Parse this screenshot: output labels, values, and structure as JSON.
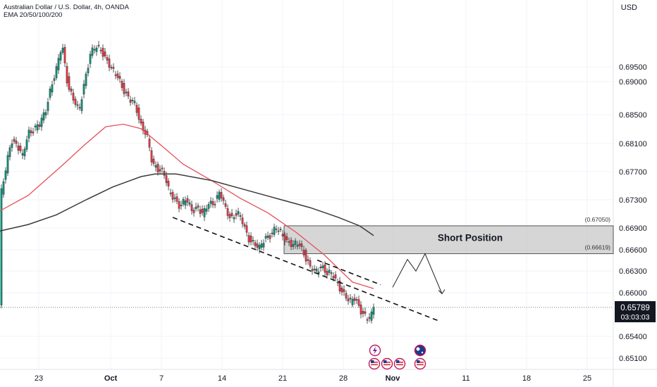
{
  "header": {
    "title": "Australian Dollar / U.S. Dollar, 4h, OANDA",
    "indicator": "EMA 20/50/100/200",
    "currency": "USD"
  },
  "chart_data": {
    "type": "candlestick",
    "y_ticks": [
      "0.69500",
      "0.69000",
      "0.68500",
      "0.68100",
      "0.67700",
      "0.67300",
      "0.66900",
      "0.66600",
      "0.66300",
      "0.66000",
      "0.65400",
      "0.65100"
    ],
    "x_ticks": [
      {
        "label": "23",
        "bold": false
      },
      {
        "label": "Oct",
        "bold": true
      },
      {
        "label": "7",
        "bold": false
      },
      {
        "label": "14",
        "bold": false
      },
      {
        "label": "21",
        "bold": false
      },
      {
        "label": "28",
        "bold": false
      },
      {
        "label": "Nov",
        "bold": true
      },
      {
        "label": "11",
        "bold": false
      },
      {
        "label": "18",
        "bold": false
      },
      {
        "label": "25",
        "bold": false
      }
    ],
    "last_price": "0.65789",
    "countdown": "03:03:03",
    "zone": {
      "label": "Short Position",
      "top_label": "(0.67050)",
      "bottom_label": "(0.66619)",
      "top": 0.6705,
      "bottom": 0.66619
    },
    "price_path": [
      [
        0,
        0.6745
      ],
      [
        8,
        0.679
      ],
      [
        16,
        0.684
      ],
      [
        24,
        0.683
      ],
      [
        32,
        0.681
      ],
      [
        40,
        0.685
      ],
      [
        48,
        0.6855
      ],
      [
        56,
        0.686
      ],
      [
        64,
        0.688
      ],
      [
        72,
        0.692
      ],
      [
        80,
        0.6945
      ],
      [
        88,
        0.6985
      ],
      [
        96,
        0.6925
      ],
      [
        104,
        0.69
      ],
      [
        112,
        0.688
      ],
      [
        120,
        0.693
      ],
      [
        128,
        0.697
      ],
      [
        136,
        0.698
      ],
      [
        144,
        0.6978
      ],
      [
        152,
        0.696
      ],
      [
        160,
        0.6942
      ],
      [
        168,
        0.6935
      ],
      [
        176,
        0.6915
      ],
      [
        184,
        0.6898
      ],
      [
        192,
        0.6892
      ],
      [
        200,
        0.6862
      ],
      [
        208,
        0.6845
      ],
      [
        216,
        0.68
      ],
      [
        224,
        0.6795
      ],
      [
        232,
        0.6788
      ],
      [
        240,
        0.6755
      ],
      [
        248,
        0.6748
      ],
      [
        256,
        0.6735
      ],
      [
        264,
        0.6745
      ],
      [
        272,
        0.673
      ],
      [
        280,
        0.6735
      ],
      [
        288,
        0.672
      ],
      [
        296,
        0.674
      ],
      [
        304,
        0.6742
      ],
      [
        312,
        0.6756
      ],
      [
        320,
        0.673
      ],
      [
        328,
        0.6718
      ],
      [
        336,
        0.6725
      ],
      [
        344,
        0.671
      ],
      [
        352,
        0.6688
      ],
      [
        360,
        0.6678
      ],
      [
        368,
        0.6668
      ],
      [
        376,
        0.6688
      ],
      [
        384,
        0.6692
      ],
      [
        392,
        0.67
      ],
      [
        400,
        0.6692
      ],
      [
        408,
        0.6682
      ],
      [
        416,
        0.6673
      ],
      [
        424,
        0.6678
      ],
      [
        432,
        0.6662
      ],
      [
        440,
        0.664
      ],
      [
        448,
        0.6632
      ],
      [
        456,
        0.6645
      ],
      [
        464,
        0.6632
      ],
      [
        472,
        0.6628
      ],
      [
        480,
        0.6615
      ],
      [
        488,
        0.66
      ],
      [
        496,
        0.6585
      ],
      [
        504,
        0.6595
      ],
      [
        512,
        0.6575
      ],
      [
        520,
        0.656
      ],
      [
        526,
        0.6562
      ],
      [
        530,
        0.6581
      ]
    ],
    "ema_red": [
      [
        0,
        0.6728
      ],
      [
        40,
        0.6752
      ],
      [
        90,
        0.68
      ],
      [
        120,
        0.683
      ],
      [
        150,
        0.6858
      ],
      [
        175,
        0.6862
      ],
      [
        200,
        0.6855
      ],
      [
        230,
        0.6828
      ],
      [
        260,
        0.68
      ],
      [
        300,
        0.6775
      ],
      [
        340,
        0.6748
      ],
      [
        380,
        0.6725
      ],
      [
        420,
        0.6695
      ],
      [
        460,
        0.666
      ],
      [
        500,
        0.6618
      ],
      [
        530,
        0.6608
      ]
    ],
    "ema_dark": [
      [
        0,
        0.6697
      ],
      [
        40,
        0.6707
      ],
      [
        80,
        0.6722
      ],
      [
        120,
        0.6744
      ],
      [
        160,
        0.6765
      ],
      [
        200,
        0.6781
      ],
      [
        220,
        0.6785
      ],
      [
        250,
        0.6785
      ],
      [
        300,
        0.6775
      ],
      [
        350,
        0.676
      ],
      [
        400,
        0.6745
      ],
      [
        440,
        0.6733
      ],
      [
        480,
        0.6718
      ],
      [
        510,
        0.6705
      ],
      [
        530,
        0.669
      ]
    ],
    "trendline": [
      [
        245,
        0.6718
      ],
      [
        625,
        0.6557
      ]
    ],
    "trendline_upper": [
      [
        450,
        0.6652
      ],
      [
        540,
        0.6614
      ]
    ],
    "projection": [
      [
        557,
        0.661
      ],
      [
        578,
        0.6653
      ],
      [
        590,
        0.6635
      ],
      [
        603,
        0.6662
      ],
      [
        627,
        0.66
      ]
    ]
  }
}
